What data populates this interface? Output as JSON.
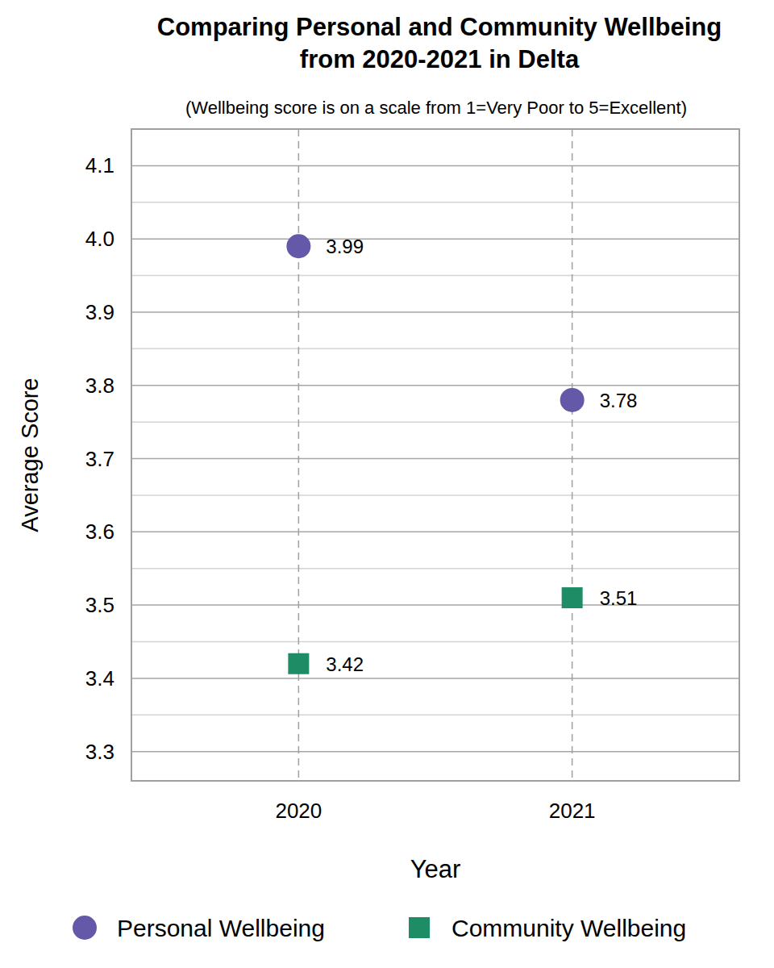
{
  "chart_data": {
    "type": "scatter",
    "title": "Comparing Personal and Community Wellbeing from 2020-2021 in Delta",
    "subtitle": "(Wellbeing score is on a scale from 1=Very Poor to 5=Excellent)",
    "x_label": "Year",
    "y_label": "Average Score",
    "categories": [
      "2020",
      "2021"
    ],
    "series": [
      {
        "name": "Personal Wellbeing",
        "color": "#6459a8",
        "marker": "circle",
        "values": [
          3.99,
          3.78
        ]
      },
      {
        "name": "Community Wellbeing",
        "color": "#1e8c64",
        "marker": "square",
        "values": [
          3.42,
          3.51
        ]
      }
    ],
    "ylim": [
      3.26,
      4.15
    ],
    "yticks": [
      3.3,
      3.4,
      3.5,
      3.6,
      3.7,
      3.8,
      3.9,
      {
        "value": 4,
        "label": "4.0"
      },
      4.1
    ],
    "grid": true,
    "data_labels": true,
    "legend": "bottom"
  }
}
